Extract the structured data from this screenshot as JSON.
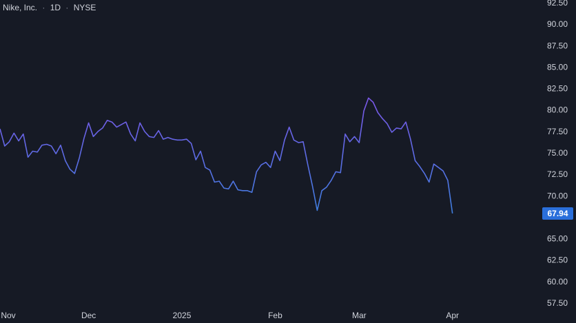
{
  "legend": {
    "symbol": "Nike, Inc.",
    "interval": "1D",
    "exchange": "NYSE",
    "separator": "·"
  },
  "colors": {
    "background": "#161a25",
    "line_start": "#7b57e8",
    "line_end": "#3f7fe0",
    "price_badge": "#2a6fdb",
    "axis_text": "#d1d4dc"
  },
  "chart_data": {
    "type": "line",
    "ylim": [
      57.5,
      92.5
    ],
    "y_ticks": [
      "57.50",
      "60.00",
      "62.50",
      "65.00",
      "70.00",
      "72.50",
      "75.00",
      "77.50",
      "80.00",
      "82.50",
      "85.00",
      "87.50",
      "90.00",
      "92.50"
    ],
    "x_ticks": [
      {
        "label": "Nov",
        "x": 0
      },
      {
        "label": "Dec",
        "x": 19
      },
      {
        "label": "2025",
        "x": 39
      },
      {
        "label": "Feb",
        "x": 59
      },
      {
        "label": "Mar",
        "x": 77
      },
      {
        "label": "Apr",
        "x": 97
      }
    ],
    "last_price": "67.94",
    "series": [
      {
        "values": [
          77.8,
          75.8,
          76.3,
          77.3,
          76.4,
          77.2,
          74.5,
          75.2,
          75.1,
          75.9,
          76.0,
          75.8,
          74.9,
          75.9,
          74.1,
          73.1,
          72.6,
          74.4,
          76.7,
          78.5,
          76.9,
          77.5,
          77.9,
          78.8,
          78.6,
          78.0,
          78.3,
          78.6,
          77.2,
          76.4,
          78.5,
          77.5,
          76.9,
          76.8,
          77.6,
          76.6,
          76.8,
          76.6,
          76.5,
          76.5,
          76.6,
          76.1,
          74.2,
          75.2,
          73.3,
          73.0,
          71.6,
          71.7,
          70.9,
          70.8,
          71.7,
          70.7,
          70.6,
          70.6,
          70.4,
          72.8,
          73.6,
          73.9,
          73.3,
          75.2,
          74.1,
          76.5,
          78.0,
          76.5,
          76.2,
          76.3,
          73.6,
          71.1,
          68.3,
          70.6,
          71.0,
          71.8,
          72.8,
          72.7,
          77.2,
          76.3,
          76.9,
          76.2,
          79.9,
          81.4,
          80.9,
          79.7,
          79.0,
          78.4,
          77.4,
          77.9,
          77.8,
          78.6,
          76.6,
          74.1,
          73.4,
          72.6,
          71.6,
          73.7,
          73.3,
          72.9,
          71.8,
          67.94
        ]
      }
    ]
  }
}
